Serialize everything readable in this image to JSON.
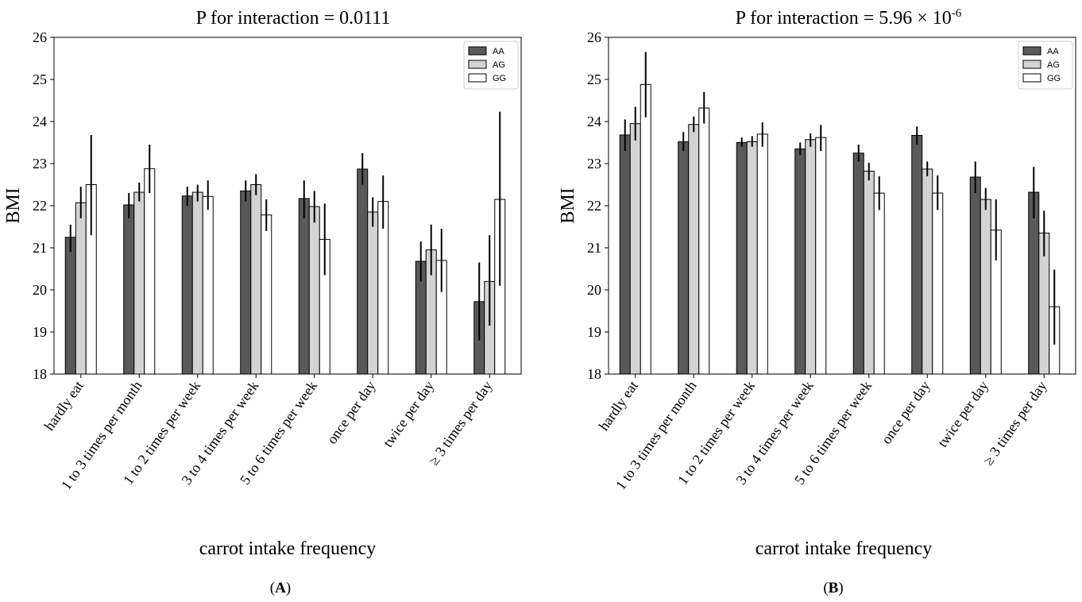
{
  "chart_data": [
    {
      "type": "bar",
      "title": "P for interaction = 0.0111",
      "title_superscript": "",
      "xlabel": "carrot intake frequency",
      "ylabel": "BMI",
      "ylim": [
        18,
        26
      ],
      "yticks": [
        18,
        19,
        20,
        21,
        22,
        23,
        24,
        25,
        26
      ],
      "categories": [
        "hardly eat",
        "1 to 3 times per month",
        "1 to 2 times per week",
        "3 to 4 times per week",
        "5 to 6 times per week",
        "once per day",
        "twice per day",
        "≥ 3 times per day"
      ],
      "legend_position": "top-right",
      "panel_label": "A",
      "series": [
        {
          "name": "AA",
          "color": "#595959",
          "values": [
            21.25,
            22.02,
            22.23,
            22.35,
            22.17,
            22.87,
            20.68,
            19.72
          ],
          "err_low": [
            20.9,
            21.7,
            22.0,
            22.1,
            21.7,
            22.5,
            20.2,
            18.8
          ],
          "err_high": [
            21.55,
            22.3,
            22.45,
            22.6,
            22.6,
            23.25,
            21.15,
            20.65
          ]
        },
        {
          "name": "AG",
          "color": "#d3d3d3",
          "values": [
            22.07,
            22.32,
            22.32,
            22.5,
            21.98,
            21.85,
            20.95,
            20.2
          ],
          "err_low": [
            21.7,
            22.1,
            22.1,
            22.25,
            21.6,
            21.5,
            20.35,
            19.15
          ],
          "err_high": [
            22.45,
            22.55,
            22.5,
            22.75,
            22.35,
            22.2,
            21.55,
            21.3
          ]
        },
        {
          "name": "GG",
          "color": "#ffffff",
          "values": [
            22.5,
            22.88,
            22.22,
            21.78,
            21.2,
            22.1,
            20.7,
            22.15
          ],
          "err_low": [
            21.3,
            22.3,
            21.9,
            21.4,
            20.35,
            21.45,
            19.95,
            20.1
          ],
          "err_high": [
            23.68,
            23.45,
            22.6,
            22.15,
            22.05,
            22.72,
            21.45,
            24.23
          ]
        }
      ]
    },
    {
      "type": "bar",
      "title": "P for interaction = 5.96 × 10",
      "title_superscript": "-6",
      "xlabel": "carrot intake frequency",
      "ylabel": "BMI",
      "ylim": [
        18,
        26
      ],
      "yticks": [
        18,
        19,
        20,
        21,
        22,
        23,
        24,
        25,
        26
      ],
      "categories": [
        "hardly eat",
        "1 to 3 times per month",
        "1 to 2 times per week",
        "3 to 4 times per week",
        "5 to 6 times per week",
        "once per day",
        "twice per day",
        "≥ 3 times per day"
      ],
      "legend_position": "top-right",
      "panel_label": "B",
      "series": [
        {
          "name": "AA",
          "color": "#595959",
          "values": [
            23.68,
            23.52,
            23.5,
            23.35,
            23.25,
            23.67,
            22.68,
            22.32
          ],
          "err_low": [
            23.3,
            23.3,
            23.4,
            23.2,
            23.05,
            23.45,
            22.3,
            21.7
          ],
          "err_high": [
            24.05,
            23.75,
            23.62,
            23.5,
            23.45,
            23.88,
            23.05,
            22.92
          ]
        },
        {
          "name": "AG",
          "color": "#d3d3d3",
          "values": [
            23.95,
            23.93,
            23.52,
            23.57,
            22.82,
            22.87,
            22.15,
            21.35
          ],
          "err_low": [
            23.55,
            23.75,
            23.4,
            23.4,
            22.6,
            22.7,
            21.9,
            20.8
          ],
          "err_high": [
            24.35,
            24.12,
            23.65,
            23.72,
            23.02,
            23.05,
            22.42,
            21.88
          ]
        },
        {
          "name": "GG",
          "color": "#ffffff",
          "values": [
            24.88,
            24.32,
            23.7,
            23.62,
            22.3,
            22.3,
            21.42,
            19.6
          ],
          "err_low": [
            24.1,
            23.95,
            23.4,
            23.3,
            21.9,
            21.9,
            20.7,
            18.7
          ],
          "err_high": [
            25.65,
            24.7,
            23.98,
            23.92,
            22.7,
            22.72,
            22.15,
            20.48
          ]
        }
      ]
    }
  ]
}
